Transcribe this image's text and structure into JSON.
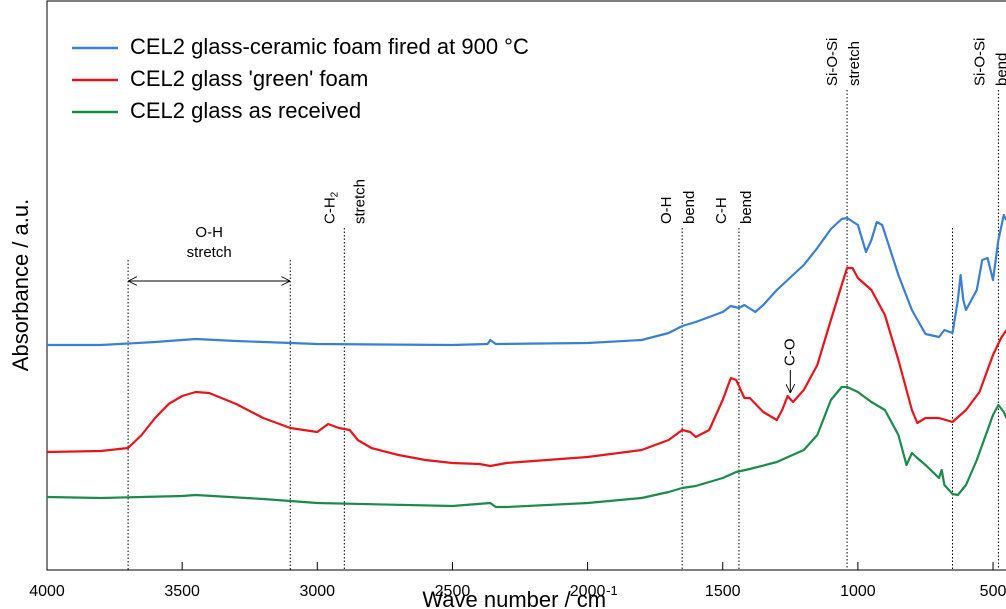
{
  "chart_data": {
    "type": "line",
    "xlabel": "Wave number / cm",
    "xlabel_sup": "-1",
    "ylabel": "Absorbance / a.u.",
    "xlim": [
      4000,
      452
    ],
    "xticks": [
      4000,
      3500,
      3000,
      2500,
      2000,
      1500,
      1000,
      500
    ],
    "ylim": [
      0,
      5.7
    ],
    "series": [
      {
        "name": "CEL2 glass-ceramic foam fired at 900 °C",
        "color": "#3b7fd4",
        "x": [
          4000,
          3800,
          3600,
          3450,
          3300,
          3000,
          2500,
          2370,
          2360,
          2340,
          2000,
          1800,
          1700,
          1650,
          1600,
          1500,
          1470,
          1440,
          1420,
          1380,
          1350,
          1300,
          1200,
          1150,
          1100,
          1060,
          1040,
          1000,
          970,
          950,
          930,
          910,
          880,
          850,
          800,
          750,
          700,
          680,
          650,
          630,
          620,
          610,
          600,
          580,
          560,
          540,
          520,
          500,
          480,
          460,
          450
        ],
        "values": [
          2.25,
          2.25,
          2.28,
          2.31,
          2.29,
          2.26,
          2.25,
          2.26,
          2.3,
          2.26,
          2.27,
          2.3,
          2.37,
          2.44,
          2.48,
          2.58,
          2.64,
          2.62,
          2.65,
          2.58,
          2.65,
          2.8,
          3.05,
          3.22,
          3.41,
          3.51,
          3.52,
          3.45,
          3.18,
          3.3,
          3.48,
          3.45,
          3.2,
          2.95,
          2.6,
          2.36,
          2.33,
          2.4,
          2.37,
          2.7,
          2.95,
          2.7,
          2.6,
          2.7,
          2.8,
          3.1,
          3.12,
          2.9,
          3.3,
          3.55,
          3.5
        ]
      },
      {
        "name": "CEL2 glass 'green' foam",
        "color": "#e8141b",
        "x": [
          4000,
          3800,
          3700,
          3650,
          3600,
          3550,
          3500,
          3450,
          3400,
          3300,
          3200,
          3100,
          3000,
          2960,
          2920,
          2880,
          2850,
          2800,
          2700,
          2600,
          2500,
          2400,
          2360,
          2300,
          2200,
          2000,
          1800,
          1700,
          1650,
          1620,
          1600,
          1550,
          1500,
          1470,
          1450,
          1420,
          1400,
          1350,
          1300,
          1280,
          1260,
          1240,
          1200,
          1150,
          1100,
          1060,
          1040,
          1020,
          1000,
          950,
          900,
          850,
          800,
          780,
          750,
          700,
          650,
          600,
          550,
          500,
          470,
          450
        ],
        "values": [
          1.18,
          1.19,
          1.22,
          1.35,
          1.52,
          1.66,
          1.74,
          1.78,
          1.77,
          1.66,
          1.52,
          1.42,
          1.38,
          1.46,
          1.42,
          1.4,
          1.3,
          1.22,
          1.15,
          1.1,
          1.07,
          1.06,
          1.04,
          1.07,
          1.09,
          1.13,
          1.2,
          1.3,
          1.4,
          1.38,
          1.33,
          1.4,
          1.7,
          1.92,
          1.9,
          1.72,
          1.72,
          1.58,
          1.5,
          1.6,
          1.74,
          1.68,
          1.8,
          2.05,
          2.5,
          2.85,
          3.02,
          3.02,
          2.92,
          2.8,
          2.55,
          2.1,
          1.6,
          1.47,
          1.52,
          1.52,
          1.48,
          1.6,
          1.78,
          2.15,
          2.32,
          2.4
        ]
      },
      {
        "name": "CEL2 glass as received",
        "color": "#1c8a4a",
        "x": [
          4000,
          3800,
          3500,
          3450,
          3200,
          3000,
          2500,
          2360,
          2340,
          2300,
          2000,
          1800,
          1700,
          1650,
          1600,
          1500,
          1450,
          1400,
          1300,
          1200,
          1150,
          1100,
          1060,
          1040,
          1000,
          950,
          900,
          850,
          820,
          800,
          780,
          750,
          700,
          690,
          680,
          650,
          630,
          600,
          560,
          520,
          500,
          480,
          460,
          450
        ],
        "values": [
          0.73,
          0.72,
          0.74,
          0.75,
          0.71,
          0.67,
          0.64,
          0.67,
          0.63,
          0.63,
          0.67,
          0.72,
          0.78,
          0.82,
          0.84,
          0.92,
          0.98,
          1.01,
          1.08,
          1.2,
          1.35,
          1.7,
          1.83,
          1.83,
          1.78,
          1.68,
          1.6,
          1.35,
          1.05,
          1.17,
          1.12,
          1.05,
          0.92,
          1.0,
          0.85,
          0.76,
          0.75,
          0.85,
          1.1,
          1.4,
          1.55,
          1.65,
          1.58,
          1.52
        ]
      }
    ],
    "annotations": [
      {
        "lines": [
          "O-H",
          "stretch"
        ],
        "x": [
          3700,
          3100
        ]
      },
      {
        "lines": [
          "C-H",
          "stretch"
        ],
        "sub": "2",
        "x": [
          2900
        ]
      },
      {
        "lines": [
          "O-H",
          "bend"
        ],
        "x": [
          1650
        ]
      },
      {
        "lines": [
          "C-H",
          "bend"
        ],
        "x": [
          1440
        ]
      },
      {
        "lines": [
          "Si-O-Si",
          "stretch"
        ],
        "x": [
          1040
        ]
      },
      {
        "lines": [
          "Si-O-Si",
          "bend"
        ],
        "x": [
          650,
          480
        ]
      },
      {
        "lines": [
          "C-O"
        ],
        "x": [
          1250
        ]
      }
    ]
  }
}
